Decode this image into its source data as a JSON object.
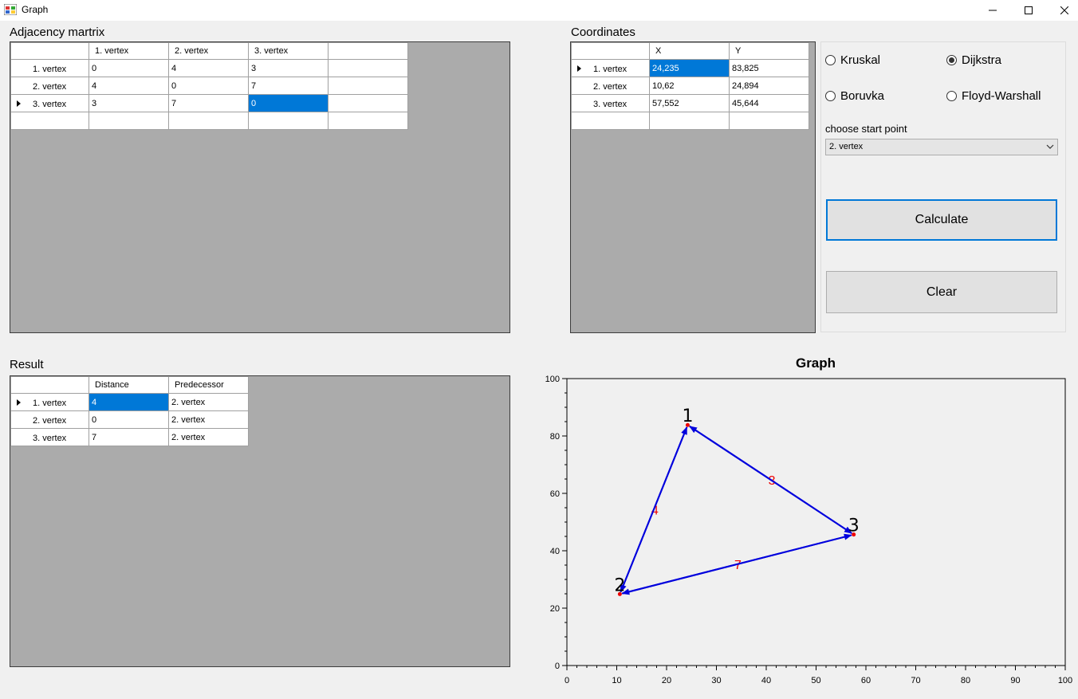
{
  "window": {
    "title": "Graph",
    "controls": {
      "minimize": "minimize",
      "maximize": "maximize",
      "close": "close"
    }
  },
  "adjacency": {
    "label": "Adjacency martrix",
    "columns": [
      "",
      "1. vertex",
      "2. vertex",
      "3. vertex",
      ""
    ],
    "rows": [
      {
        "header": "1. vertex",
        "cells": [
          "0",
          "4",
          "3",
          ""
        ],
        "current": false
      },
      {
        "header": "2. vertex",
        "cells": [
          "4",
          "0",
          "7",
          ""
        ],
        "current": false
      },
      {
        "header": "3. vertex",
        "cells": [
          "3",
          "7",
          "0",
          ""
        ],
        "current": true,
        "selected_col": 2
      },
      {
        "header": "",
        "cells": [
          "",
          "",
          "",
          ""
        ],
        "current": false
      }
    ]
  },
  "coordinates": {
    "label": "Coordinates",
    "columns": [
      "",
      "X",
      "Y"
    ],
    "rows": [
      {
        "header": "1. vertex",
        "cells": [
          "24,235",
          "83,825"
        ],
        "current": true,
        "selected_col": 0
      },
      {
        "header": "2. vertex",
        "cells": [
          "10,62",
          "24,894"
        ],
        "current": false
      },
      {
        "header": "3. vertex",
        "cells": [
          "57,552",
          "45,644"
        ],
        "current": false
      },
      {
        "header": "",
        "cells": [
          "",
          ""
        ],
        "current": false
      }
    ]
  },
  "algorithms": {
    "kruskal": {
      "label": "Kruskal",
      "checked": false
    },
    "dijkstra": {
      "label": "Dijkstra",
      "checked": true
    },
    "boruvka": {
      "label": "Boruvka",
      "checked": false
    },
    "floyd": {
      "label": "Floyd-Warshall",
      "checked": false
    }
  },
  "start_point": {
    "label": "choose start point",
    "selected": "2. vertex"
  },
  "buttons": {
    "calculate": "Calculate",
    "clear": "Clear"
  },
  "result": {
    "label": "Result",
    "columns": [
      "",
      "Distance",
      "Predecessor"
    ],
    "rows": [
      {
        "header": "1. vertex",
        "cells": [
          "4",
          "2. vertex"
        ],
        "current": true,
        "selected_col": 0
      },
      {
        "header": "2. vertex",
        "cells": [
          "0",
          "2. vertex"
        ],
        "current": false
      },
      {
        "header": "3. vertex",
        "cells": [
          "7",
          "2. vertex"
        ],
        "current": false
      }
    ]
  },
  "chart_data": {
    "type": "scatter",
    "title": "Graph",
    "xlim": [
      0,
      100
    ],
    "ylim": [
      0,
      100
    ],
    "x_ticks": [
      0,
      10,
      20,
      30,
      40,
      50,
      60,
      70,
      80,
      90,
      100
    ],
    "y_ticks": [
      0,
      20,
      40,
      60,
      80,
      100
    ],
    "vertices": [
      {
        "label": "1",
        "x": 24.235,
        "y": 83.825
      },
      {
        "label": "2",
        "x": 10.62,
        "y": 24.894
      },
      {
        "label": "3",
        "x": 57.552,
        "y": 45.644
      }
    ],
    "edges": [
      {
        "from": 0,
        "to": 1,
        "weight": "4"
      },
      {
        "from": 0,
        "to": 2,
        "weight": "3"
      },
      {
        "from": 1,
        "to": 2,
        "weight": "7"
      }
    ],
    "colors": {
      "edge": "#0000dd",
      "weight": "#ee0000",
      "vertex": "#ee0000"
    }
  }
}
